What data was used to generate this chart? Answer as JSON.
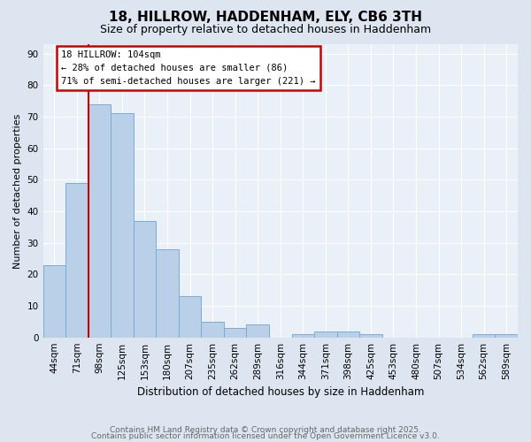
{
  "title1": "18, HILLROW, HADDENHAM, ELY, CB6 3TH",
  "title2": "Size of property relative to detached houses in Haddenham",
  "xlabel": "Distribution of detached houses by size in Haddenham",
  "ylabel": "Number of detached properties",
  "categories": [
    "44sqm",
    "71sqm",
    "98sqm",
    "125sqm",
    "153sqm",
    "180sqm",
    "207sqm",
    "235sqm",
    "262sqm",
    "289sqm",
    "316sqm",
    "344sqm",
    "371sqm",
    "398sqm",
    "425sqm",
    "453sqm",
    "480sqm",
    "507sqm",
    "534sqm",
    "562sqm",
    "589sqm"
  ],
  "values": [
    23,
    49,
    74,
    71,
    37,
    28,
    13,
    5,
    3,
    4,
    0,
    1,
    2,
    2,
    1,
    0,
    0,
    0,
    0,
    1,
    1
  ],
  "bar_color": "#bad0e8",
  "bar_edge_color": "#7aadd4",
  "vline_color": "#cc0000",
  "annotation_text": "18 HILLROW: 104sqm\n← 28% of detached houses are smaller (86)\n71% of semi-detached houses are larger (221) →",
  "annotation_box_color": "#ffffff",
  "annotation_border_color": "#cc0000",
  "footer1": "Contains HM Land Registry data © Crown copyright and database right 2025.",
  "footer2": "Contains public sector information licensed under the Open Government Licence v3.0.",
  "ylim": [
    0,
    93
  ],
  "bg_color": "#dde5f0",
  "plot_bg_color": "#eaf0f8",
  "grid_color": "#ffffff",
  "title1_fontsize": 11,
  "title2_fontsize": 9,
  "xlabel_fontsize": 8.5,
  "ylabel_fontsize": 8,
  "tick_fontsize": 7.5,
  "footer_fontsize": 6.5,
  "annotation_fontsize": 7.5
}
